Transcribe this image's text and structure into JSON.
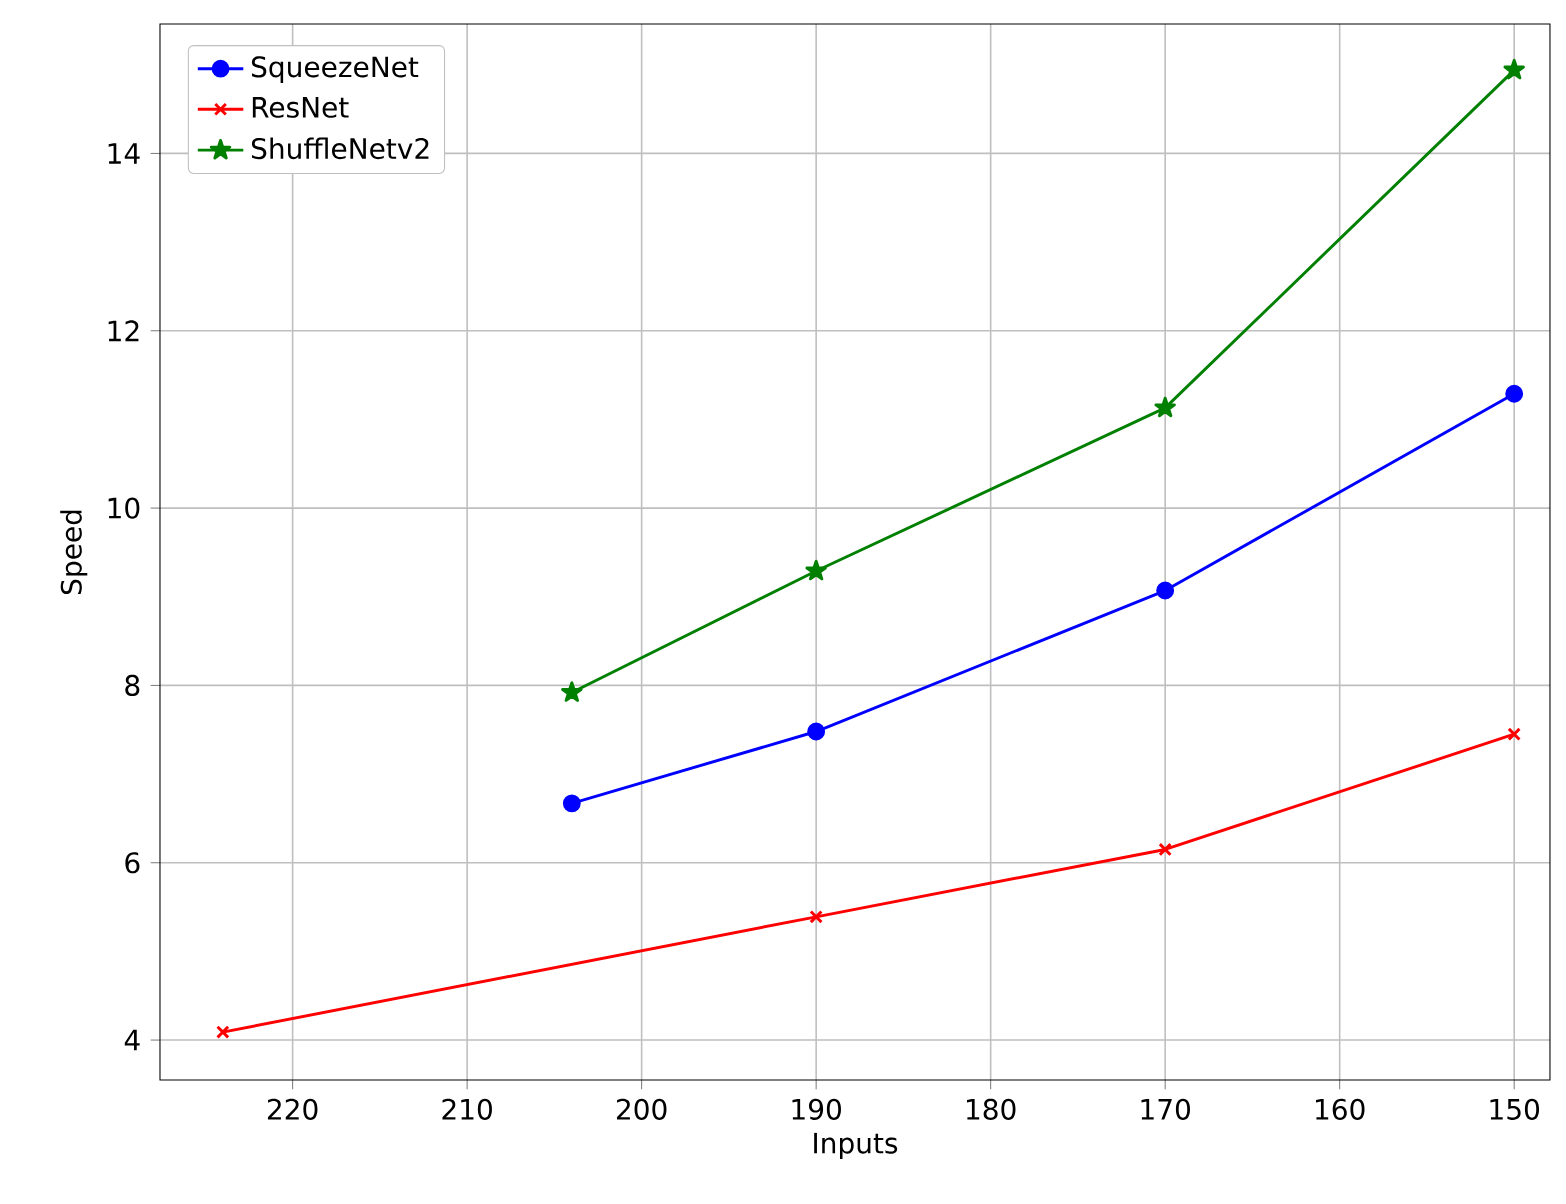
{
  "chart_data": {
    "type": "line",
    "xlabel": "Inputs",
    "ylabel": "Speed",
    "xlim": [
      227.6,
      147.95
    ],
    "ylim": [
      3.55,
      15.46
    ],
    "xticks": [
      150,
      160,
      170,
      180,
      190,
      200,
      210,
      220
    ],
    "yticks": [
      4,
      6,
      8,
      10,
      12,
      14
    ],
    "grid": true,
    "legend": "top left",
    "series": [
      {
        "name": "SqueezeNet",
        "color": "#0000ff",
        "marker": "circle",
        "x": [
          204,
          190,
          170,
          150
        ],
        "values": [
          6.67,
          7.48,
          9.07,
          11.29
        ]
      },
      {
        "name": "ResNet",
        "color": "#ff0000",
        "marker": "cross",
        "x": [
          224,
          190,
          170,
          150
        ],
        "values": [
          4.09,
          5.39,
          6.15,
          7.45
        ]
      },
      {
        "name": "ShuffleNetv2",
        "color": "#008000",
        "marker": "star",
        "x": [
          204,
          190,
          170,
          150
        ],
        "values": [
          7.92,
          9.29,
          11.13,
          14.94
        ]
      }
    ]
  }
}
